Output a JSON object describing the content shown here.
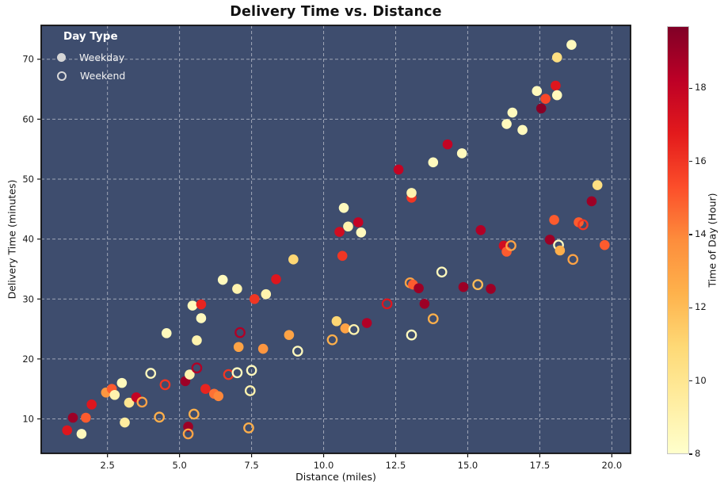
{
  "chart_data": {
    "type": "scatter",
    "title": "Delivery Time vs. Distance",
    "xlabel": "Distance (miles)",
    "ylabel": "Delivery Time (minutes)",
    "xlim": [
      0.2,
      20.65
    ],
    "ylim": [
      4.25,
      75.65
    ],
    "x_ticks": [
      2.5,
      5.0,
      7.5,
      10.0,
      12.5,
      15.0,
      17.5,
      20.0
    ],
    "x_tick_labels": [
      "2.5",
      "5.0",
      "7.5",
      "10.0",
      "12.5",
      "15.0",
      "17.5",
      "20.0"
    ],
    "y_ticks": [
      10,
      20,
      30,
      40,
      50,
      60,
      70
    ],
    "grid": "dashed",
    "plot_background": "#3E4D6E",
    "grid_color": "rgba(255,255,255,0.5)",
    "legend": {
      "position": "upper left",
      "title": "Day Type",
      "items": [
        {
          "label": "Weekday",
          "marker": "filled"
        },
        {
          "label": "Weekend",
          "marker": "open"
        }
      ]
    },
    "colorbar": {
      "label": "Time of Day (Hour)",
      "colormap": "YlOrRd",
      "vmin": 8,
      "vmax": 19.7,
      "ticks": [
        8,
        10,
        12,
        14,
        16,
        18
      ],
      "stops": [
        "#ffffcc",
        "#ffeda0",
        "#fed976",
        "#feb24c",
        "#fd8d3c",
        "#fc4e2a",
        "#e31a1c",
        "#bd0026",
        "#800026"
      ]
    },
    "point_schema": [
      "distance_miles",
      "delivery_time_minutes",
      "time_of_day_hour",
      "day_type"
    ],
    "points": [
      [
        1.1,
        8.1,
        17,
        "weekday"
      ],
      [
        1.3,
        10.2,
        19,
        "weekday"
      ],
      [
        1.6,
        7.5,
        8.5,
        "weekday"
      ],
      [
        1.75,
        10.2,
        15,
        "weekday"
      ],
      [
        1.95,
        12.4,
        17,
        "weekday"
      ],
      [
        2.45,
        14.4,
        13.5,
        "weekday"
      ],
      [
        2.65,
        15.0,
        15,
        "weekday"
      ],
      [
        2.75,
        14.0,
        9,
        "weekday"
      ],
      [
        3.0,
        16.0,
        8.5,
        "weekday"
      ],
      [
        3.1,
        9.4,
        9.5,
        "weekday"
      ],
      [
        3.25,
        12.7,
        10,
        "weekday"
      ],
      [
        3.5,
        13.6,
        18,
        "weekday"
      ],
      [
        3.7,
        12.8,
        13,
        "weekend"
      ],
      [
        4.0,
        17.6,
        8.5,
        "weekend"
      ],
      [
        4.3,
        10.3,
        12.5,
        "weekend"
      ],
      [
        4.5,
        15.7,
        16,
        "weekend"
      ],
      [
        4.55,
        24.3,
        8.5,
        "weekday"
      ],
      [
        5.2,
        16.3,
        19,
        "weekday"
      ],
      [
        5.35,
        17.4,
        9,
        "weekday"
      ],
      [
        5.6,
        18.5,
        18.5,
        "weekend"
      ],
      [
        5.5,
        10.8,
        12.5,
        "weekend"
      ],
      [
        5.3,
        8.7,
        19,
        "weekday"
      ],
      [
        5.3,
        7.5,
        13,
        "weekend"
      ],
      [
        5.6,
        23.1,
        9,
        "weekday"
      ],
      [
        5.75,
        26.8,
        8.5,
        "weekday"
      ],
      [
        5.9,
        15.0,
        16.5,
        "weekday"
      ],
      [
        6.2,
        14.2,
        14.5,
        "weekday"
      ],
      [
        6.35,
        13.8,
        14,
        "weekday"
      ],
      [
        6.7,
        17.4,
        16,
        "weekend"
      ],
      [
        7.0,
        17.7,
        8.5,
        "weekend"
      ],
      [
        7.5,
        18.1,
        8.5,
        "weekend"
      ],
      [
        7.45,
        14.7,
        9,
        "weekend"
      ],
      [
        7.4,
        8.5,
        12.5,
        "weekend"
      ],
      [
        5.45,
        28.9,
        8.5,
        "weekday"
      ],
      [
        5.75,
        29.1,
        16.5,
        "weekday"
      ],
      [
        6.5,
        33.2,
        8.5,
        "weekday"
      ],
      [
        7.0,
        31.7,
        9,
        "weekday"
      ],
      [
        7.1,
        24.4,
        18.5,
        "weekend"
      ],
      [
        7.05,
        22.0,
        13,
        "weekday"
      ],
      [
        7.6,
        30.0,
        16,
        "weekday"
      ],
      [
        7.9,
        21.7,
        13.5,
        "weekday"
      ],
      [
        8.0,
        30.8,
        9,
        "weekday"
      ],
      [
        8.35,
        33.3,
        17,
        "weekday"
      ],
      [
        8.8,
        24.0,
        13,
        "weekday"
      ],
      [
        8.95,
        36.6,
        11,
        "weekday"
      ],
      [
        9.1,
        21.3,
        8.5,
        "weekend"
      ],
      [
        10.3,
        23.2,
        12.5,
        "weekend"
      ],
      [
        10.45,
        26.3,
        11,
        "weekday"
      ],
      [
        10.75,
        25.1,
        13,
        "weekday"
      ],
      [
        11.05,
        24.9,
        9,
        "weekend"
      ],
      [
        11.5,
        26.0,
        18.5,
        "weekday"
      ],
      [
        10.55,
        41.2,
        17.5,
        "weekday"
      ],
      [
        10.7,
        45.2,
        8.5,
        "weekday"
      ],
      [
        10.85,
        42.1,
        9,
        "weekday"
      ],
      [
        11.2,
        42.8,
        18,
        "weekday"
      ],
      [
        11.3,
        41.1,
        8.5,
        "weekday"
      ],
      [
        10.65,
        37.2,
        16,
        "weekday"
      ],
      [
        12.2,
        29.2,
        17,
        "weekend"
      ],
      [
        12.6,
        51.6,
        18,
        "weekday"
      ],
      [
        13.05,
        24.0,
        8.5,
        "weekend"
      ],
      [
        13.0,
        32.7,
        13,
        "weekend"
      ],
      [
        13.1,
        32.4,
        15,
        "weekday"
      ],
      [
        13.3,
        31.8,
        19,
        "weekday"
      ],
      [
        13.5,
        29.2,
        19,
        "weekday"
      ],
      [
        13.8,
        26.7,
        12.5,
        "weekend"
      ],
      [
        13.8,
        52.8,
        8.5,
        "weekday"
      ],
      [
        13.05,
        46.9,
        16,
        "weekday"
      ],
      [
        13.05,
        47.7,
        9,
        "weekday"
      ],
      [
        14.1,
        34.5,
        8.5,
        "weekend"
      ],
      [
        14.3,
        55.8,
        18,
        "weekday"
      ],
      [
        14.8,
        54.3,
        8.5,
        "weekday"
      ],
      [
        14.85,
        32.0,
        19,
        "weekday"
      ],
      [
        15.35,
        32.4,
        12,
        "weekend"
      ],
      [
        15.45,
        41.5,
        18.5,
        "weekday"
      ],
      [
        15.8,
        31.7,
        19,
        "weekday"
      ],
      [
        16.25,
        38.9,
        17.5,
        "weekday"
      ],
      [
        16.35,
        37.9,
        15,
        "weekday"
      ],
      [
        16.5,
        38.9,
        13,
        "weekend"
      ],
      [
        16.35,
        59.2,
        8.5,
        "weekday"
      ],
      [
        16.55,
        61.1,
        8.5,
        "weekday"
      ],
      [
        16.9,
        58.2,
        8.5,
        "weekday"
      ],
      [
        17.4,
        64.7,
        8.5,
        "weekday"
      ],
      [
        17.55,
        61.8,
        19.5,
        "weekday"
      ],
      [
        17.7,
        63.4,
        15.5,
        "weekday"
      ],
      [
        18.05,
        65.6,
        17,
        "weekday"
      ],
      [
        18.1,
        64.0,
        8.5,
        "weekday"
      ],
      [
        18.1,
        70.3,
        10.5,
        "weekday"
      ],
      [
        18.6,
        72.4,
        8.5,
        "weekday"
      ],
      [
        17.85,
        39.9,
        19,
        "weekday"
      ],
      [
        18.15,
        39.0,
        8.5,
        "weekend"
      ],
      [
        18.2,
        38.1,
        12.5,
        "weekday"
      ],
      [
        18.65,
        36.6,
        13,
        "weekend"
      ],
      [
        18.0,
        43.2,
        15,
        "weekday"
      ],
      [
        18.85,
        42.8,
        15,
        "weekday"
      ],
      [
        19.0,
        42.4,
        16,
        "weekend"
      ],
      [
        19.3,
        46.3,
        19,
        "weekday"
      ],
      [
        19.5,
        49.0,
        10.5,
        "weekday"
      ],
      [
        19.75,
        39.0,
        15,
        "weekday"
      ]
    ]
  }
}
